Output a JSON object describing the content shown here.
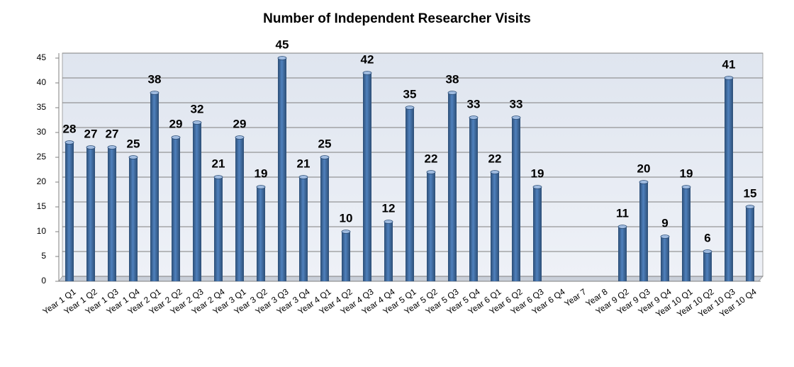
{
  "chart_data": {
    "type": "bar",
    "title": "Number of Independent Researcher Visits",
    "categories": [
      "Year 1 Q1",
      "Year 1 Q2",
      "Year 1 Q3",
      "Year 1 Q4",
      "Year 2 Q1",
      "Year 2 Q2",
      "Year 2 Q3",
      "Year 2 Q4",
      "Year 3 Q1",
      "Year 3 Q2",
      "Year 3 Q3",
      "Year 3 Q4",
      "Year 4 Q1",
      "Year 4 Q2",
      "Year 4 Q3",
      "Year 4 Q4",
      "Year 5 Q1",
      "Year 5 Q2",
      "Year 5 Q3",
      "Year 5 Q4",
      "Year 6 Q1",
      "Year 6 Q2",
      "Year 6 Q3",
      "Year 6 Q4",
      "Year 7",
      "Year 8",
      "Year 9 Q2",
      "Year 9 Q3",
      "Year 9 Q4",
      "Year 10 Q1",
      "Year 10 Q2",
      "Year 10 Q3",
      "Year 10 Q4"
    ],
    "values": [
      28,
      27,
      27,
      25,
      38,
      29,
      32,
      21,
      29,
      19,
      45,
      21,
      25,
      10,
      42,
      12,
      35,
      22,
      38,
      33,
      22,
      33,
      19,
      null,
      null,
      null,
      11,
      20,
      9,
      19,
      6,
      41,
      15
    ],
    "color": "#4f81bd",
    "ylim": [
      0,
      45
    ],
    "yticks": [
      0,
      5,
      10,
      15,
      20,
      25,
      30,
      35,
      40,
      45
    ],
    "grid": true
  }
}
